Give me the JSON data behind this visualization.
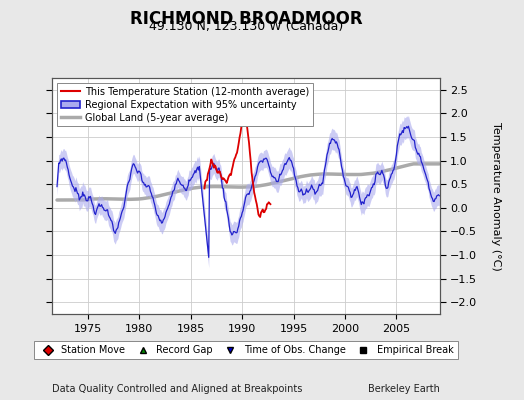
{
  "title": "RICHMOND BROADMOOR",
  "subtitle": "49.130 N, 123.130 W (Canada)",
  "ylabel": "Temperature Anomaly (°C)",
  "xlabel_left": "Data Quality Controlled and Aligned at Breakpoints",
  "xlabel_right": "Berkeley Earth",
  "ylim": [
    -2.25,
    2.75
  ],
  "xlim": [
    1971.5,
    2009.2
  ],
  "yticks": [
    -2,
    -1.5,
    -1,
    -0.5,
    0,
    0.5,
    1,
    1.5,
    2,
    2.5
  ],
  "xticks": [
    1975,
    1980,
    1985,
    1990,
    1995,
    2000,
    2005
  ],
  "background_color": "#e8e8e8",
  "plot_bg_color": "#ffffff",
  "legend1_labels": [
    "This Temperature Station (12-month average)",
    "Regional Expectation with 95% uncertainty",
    "Global Land (5-year average)"
  ],
  "legend2_entries": [
    {
      "label": "Station Move",
      "marker": "D",
      "color": "#dd0000"
    },
    {
      "label": "Record Gap",
      "marker": "^",
      "color": "#008800"
    },
    {
      "label": "Time of Obs. Change",
      "marker": "v",
      "color": "#0000dd"
    },
    {
      "label": "Empirical Break",
      "marker": "s",
      "color": "#000000"
    }
  ],
  "station_color": "#dd0000",
  "regional_color": "#2222cc",
  "regional_fill_color": "#aaaaee",
  "global_color": "#aaaaaa",
  "grid_color": "#cccccc",
  "title_fontsize": 12,
  "subtitle_fontsize": 9,
  "tick_fontsize": 8,
  "ylabel_fontsize": 8,
  "legend_fontsize": 7.5,
  "station_xlim": [
    1986.5,
    1992.5
  ]
}
